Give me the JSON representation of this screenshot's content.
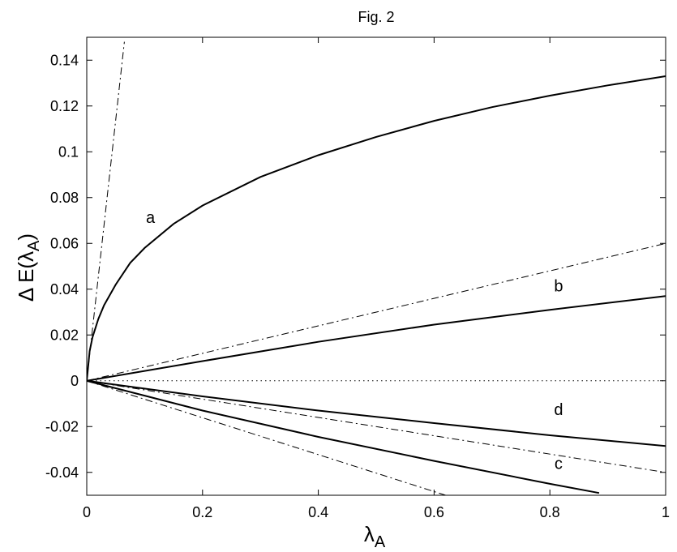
{
  "chart_data": {
    "type": "line",
    "title": "Fig. 2",
    "xlabel": "λ",
    "xlabel_subscript": "A",
    "ylabel_prefix": "Δ E(λ",
    "ylabel_subscript": "A",
    "ylabel_suffix": ")",
    "xlim": [
      0,
      1
    ],
    "ylim": [
      -0.05,
      0.15
    ],
    "xticks": [
      0,
      0.2,
      0.4,
      0.6,
      0.8,
      1
    ],
    "xtick_labels": [
      "0",
      "0.2",
      "0.4",
      "0.6",
      "0.8",
      "1"
    ],
    "yticks": [
      -0.04,
      -0.02,
      0,
      0.02,
      0.04,
      0.06,
      0.08,
      0.1,
      0.12,
      0.14
    ],
    "ytick_labels": [
      "-0.04",
      "-0.02",
      "0",
      "0.02",
      "0.04",
      "0.06",
      "0.08",
      "0.1",
      "0.12",
      "0.14"
    ],
    "grid": false,
    "series": [
      {
        "label": "a",
        "style": "solid",
        "x": [
          0,
          0.005,
          0.01,
          0.02,
          0.03,
          0.05,
          0.075,
          0.1,
          0.15,
          0.2,
          0.3,
          0.4,
          0.5,
          0.6,
          0.7,
          0.8,
          0.9,
          1.0
        ],
        "y": [
          0,
          0.013,
          0.019,
          0.027,
          0.033,
          0.042,
          0.0515,
          0.058,
          0.0685,
          0.0765,
          0.089,
          0.0985,
          0.1065,
          0.1135,
          0.1195,
          0.1245,
          0.129,
          0.133
        ]
      },
      {
        "label": "b",
        "style": "solid",
        "x": [
          0,
          0.2,
          0.4,
          0.6,
          0.8,
          1.0
        ],
        "y": [
          0,
          0.0086,
          0.017,
          0.0245,
          0.031,
          0.037
        ]
      },
      {
        "label": "c",
        "style": "solid",
        "x": [
          0,
          0.1,
          0.2,
          0.4,
          0.6,
          0.8,
          0.885
        ],
        "y": [
          0,
          -0.0065,
          -0.013,
          -0.0245,
          -0.035,
          -0.045,
          -0.049
        ]
      },
      {
        "label": "d",
        "style": "solid",
        "x": [
          0,
          0.2,
          0.4,
          0.6,
          0.8,
          1.0
        ],
        "y": [
          0,
          -0.0068,
          -0.013,
          -0.0185,
          -0.0238,
          -0.0285
        ]
      },
      {
        "label": "",
        "style": "dashdot",
        "x": [
          0,
          0.065
        ],
        "y": [
          0,
          0.148
        ]
      },
      {
        "label": "",
        "style": "dashdot",
        "x": [
          0,
          1.0
        ],
        "y": [
          0,
          0.06
        ]
      },
      {
        "label": "",
        "style": "dashdot",
        "x": [
          0,
          1.0
        ],
        "y": [
          0,
          -0.04
        ]
      },
      {
        "label": "",
        "style": "dashdot",
        "x": [
          0,
          0.62
        ],
        "y": [
          0,
          -0.05
        ]
      },
      {
        "label": "",
        "style": "dotted",
        "x": [
          0,
          1.0
        ],
        "y": [
          0,
          0
        ]
      }
    ],
    "annotations": [
      {
        "text": "a",
        "x": 0.11,
        "y": 0.069
      },
      {
        "text": "b",
        "x": 0.815,
        "y": 0.039
      },
      {
        "text": "d",
        "x": 0.815,
        "y": -0.015
      },
      {
        "text": "c",
        "x": 0.815,
        "y": -0.0385
      }
    ]
  }
}
